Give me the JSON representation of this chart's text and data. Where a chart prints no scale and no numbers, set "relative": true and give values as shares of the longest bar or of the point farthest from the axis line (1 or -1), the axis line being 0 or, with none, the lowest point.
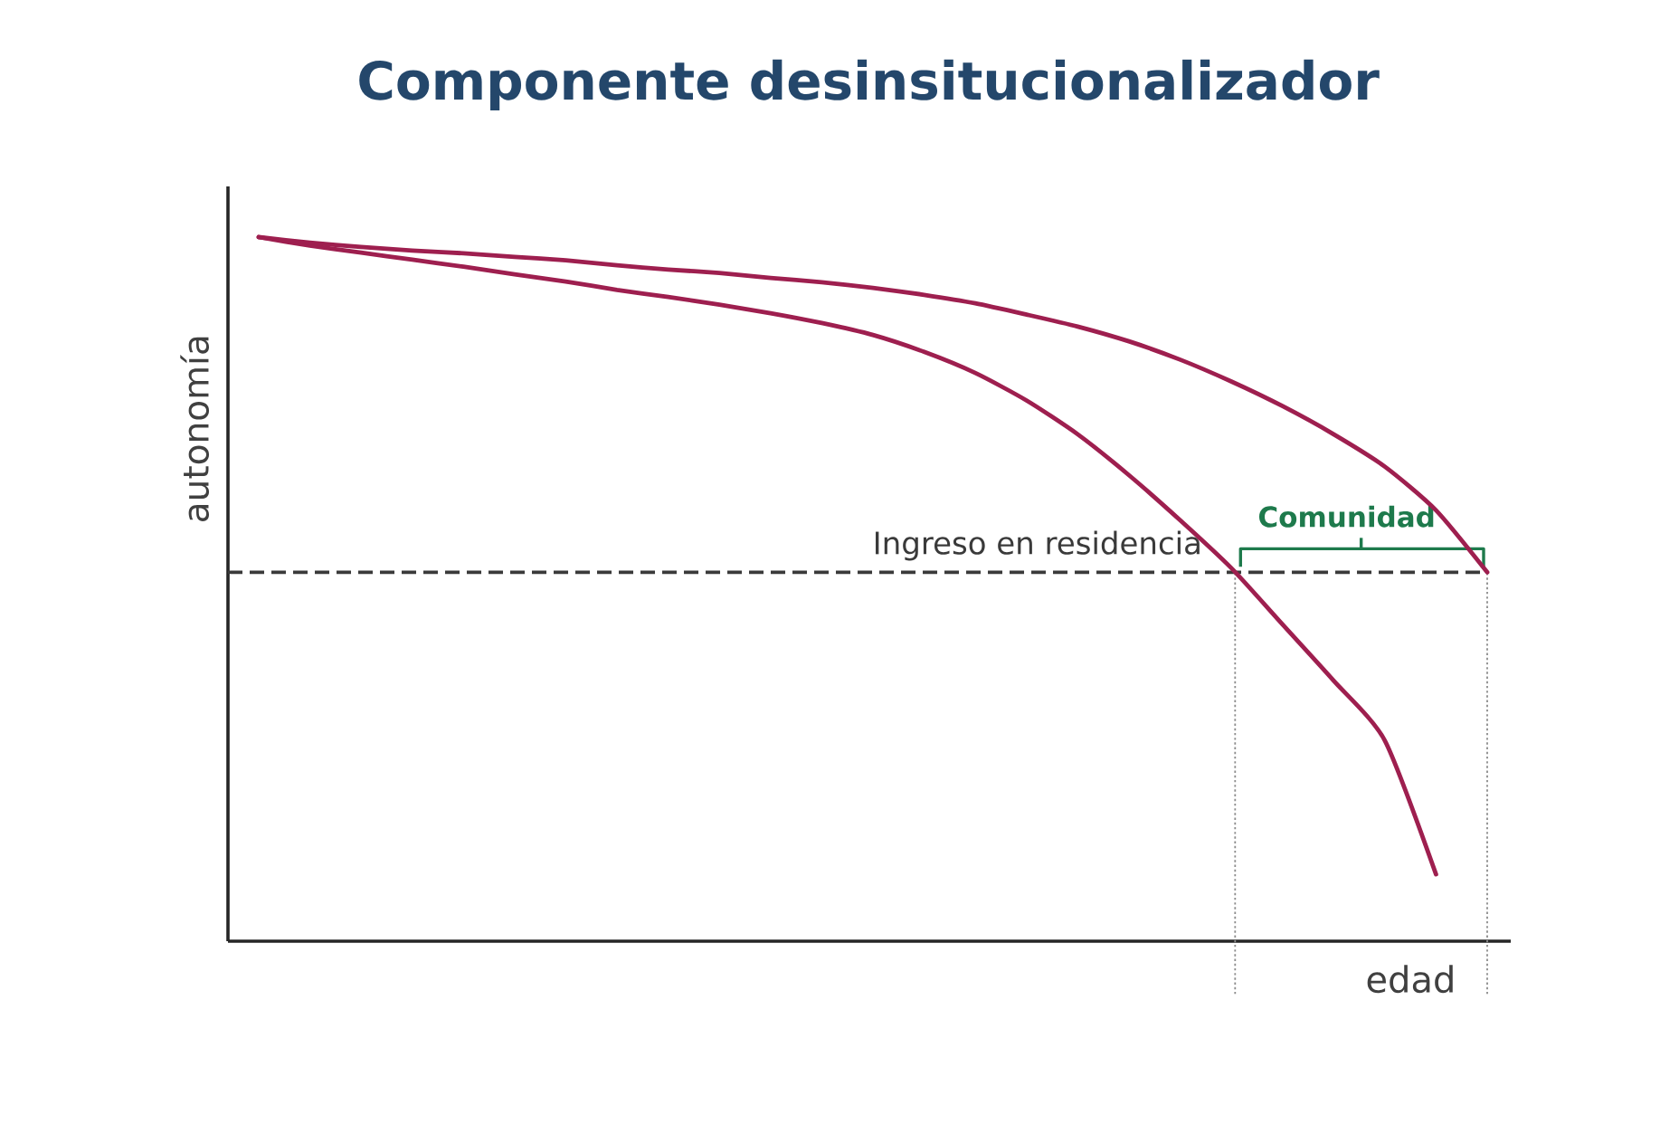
{
  "chart_data": {
    "type": "line",
    "title": "Componente desinsitucionalizador",
    "xlabel": "edad",
    "ylabel": "autonomía",
    "relative": true,
    "categories": [
      null,
      null,
      null,
      null,
      null,
      null,
      null,
      null,
      null,
      null,
      null,
      null,
      null,
      null,
      null,
      null,
      null,
      null,
      null,
      null,
      null,
      null,
      null,
      null,
      null
    ],
    "series": [
      {
        "color": "#9e1f4f",
        "values": [
          1,
          0.988,
          0.978,
          0.968,
          0.958,
          0.947,
          0.937,
          0.925,
          0.915,
          0.904,
          0.892,
          0.878,
          0.861,
          0.837,
          0.807,
          0.768,
          0.72,
          0.662,
          0.598,
          0.53,
          0.45,
          0.37,
          0.285,
          0.095,
          null
        ]
      },
      {
        "color": "#9e1f4f",
        "values": [
          1,
          0.992,
          0.986,
          0.981,
          0.977,
          0.972,
          0.967,
          0.96,
          0.954,
          0.949,
          0.942,
          0.936,
          0.928,
          0.918,
          0.906,
          0.89,
          0.873,
          0.852,
          0.826,
          0.795,
          0.76,
          0.72,
          0.674,
          0.612,
          0.524
        ]
      }
    ],
    "ref_lines": [
      {
        "axis": "y",
        "value": 0.524,
        "label": "Ingreso en residencia",
        "color": "#3a3a3a",
        "line_style": "dashed"
      }
    ],
    "annotations": [
      "Comunidad"
    ],
    "marker": "none",
    "line_style": "solid"
  }
}
